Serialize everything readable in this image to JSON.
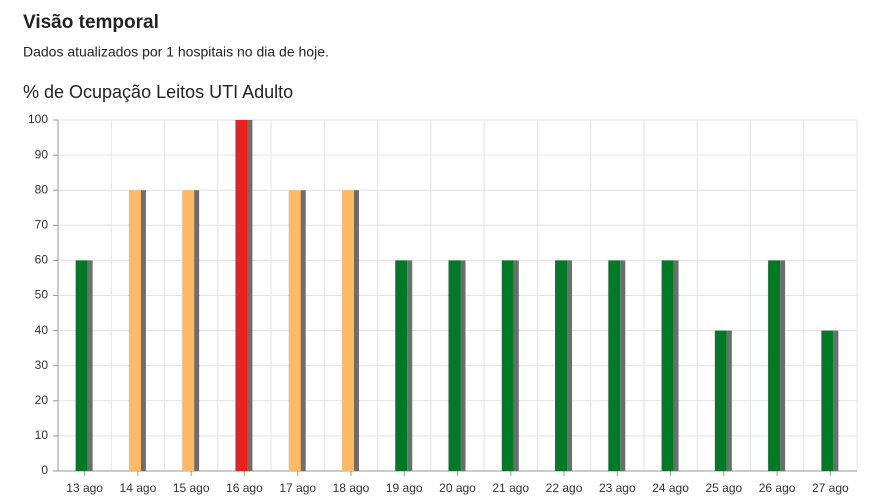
{
  "header": {
    "title": "Visão temporal",
    "subtitle": "Dados atualizados por 1 hospitais no dia de hoje."
  },
  "chart_data": {
    "type": "bar",
    "title": "% de Ocupação Leitos UTI Adulto",
    "categories": [
      "13 ago",
      "14 ago",
      "15 ago",
      "16 ago",
      "17 ago",
      "18 ago",
      "19 ago",
      "20 ago",
      "21 ago",
      "22 ago",
      "23 ago",
      "24 ago",
      "25 ago",
      "26 ago",
      "27 ago"
    ],
    "values": [
      60,
      80,
      80,
      100,
      80,
      80,
      60,
      60,
      60,
      60,
      60,
      60,
      40,
      60,
      40
    ],
    "colors": [
      "#007a27",
      "#fdb964",
      "#fdb964",
      "#e8221f",
      "#fdb964",
      "#fdb964",
      "#007a27",
      "#007a27",
      "#007a27",
      "#007a27",
      "#007a27",
      "#007a27",
      "#007a27",
      "#007a27",
      "#007a27"
    ],
    "shadow_color": "#6d6d6d",
    "ylim": [
      0,
      100
    ],
    "yticks": [
      0,
      10,
      20,
      30,
      40,
      50,
      60,
      70,
      80,
      90,
      100
    ],
    "grid": true
  }
}
